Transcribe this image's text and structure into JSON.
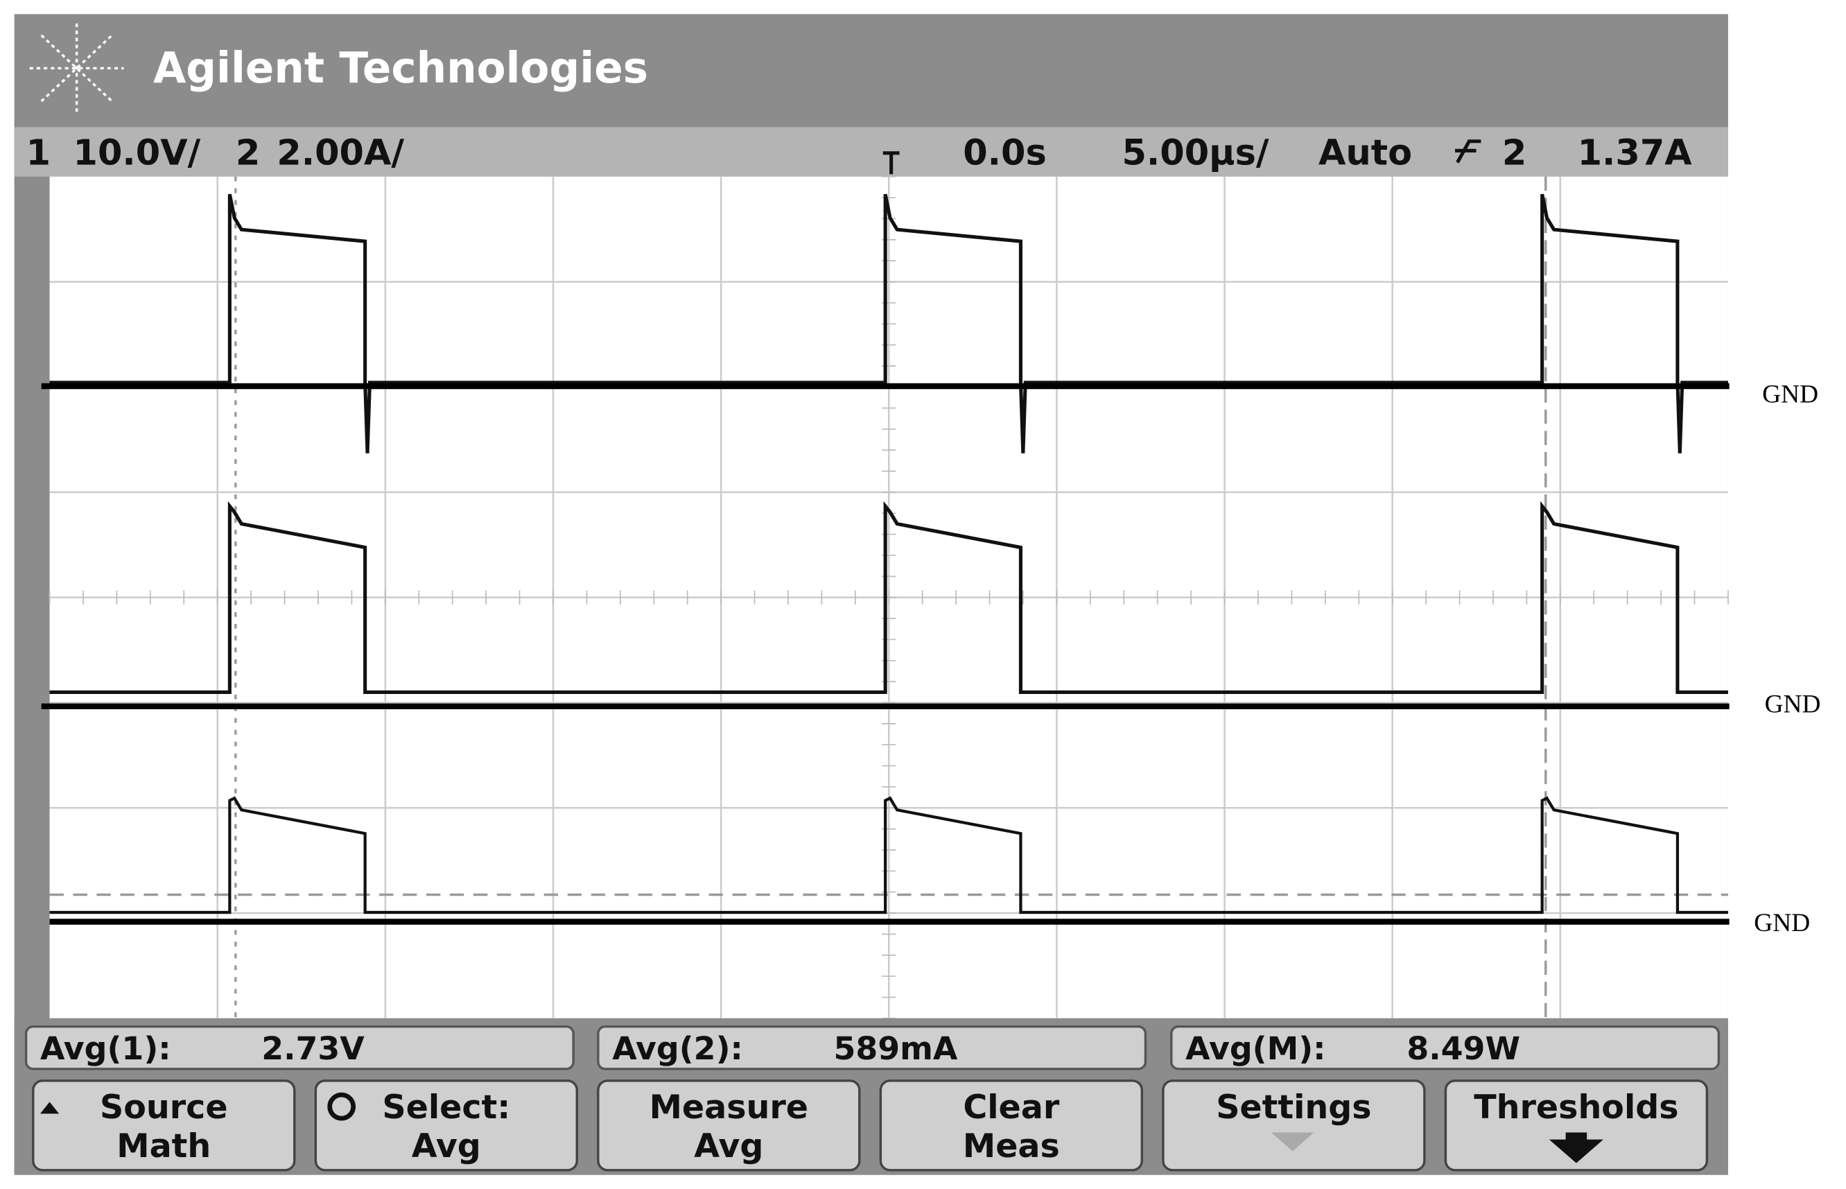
{
  "header": {
    "brand": "Agilent Technologies"
  },
  "status": {
    "ch1_number": "1",
    "ch1_scale": "10.0V/",
    "ch2_number": "2",
    "ch2_scale": "2.00A/",
    "time_offset": "0.0s",
    "time_scale": "5.00µs/",
    "trigger_mode": "Auto",
    "trigger_source": "2",
    "trigger_level": "1.37A"
  },
  "gnd_labels": [
    "GND",
    "GND",
    "GND"
  ],
  "measurements": [
    {
      "label": "Avg(1):",
      "value": "2.73V"
    },
    {
      "label": "Avg(2):",
      "value": "589mA"
    },
    {
      "label": "Avg(M):",
      "value": "8.49W"
    }
  ],
  "softkeys": [
    {
      "lines": [
        "Source",
        "Math"
      ]
    },
    {
      "lines": [
        "Select:",
        "Avg"
      ]
    },
    {
      "lines": [
        "Measure",
        "Avg"
      ]
    },
    {
      "lines": [
        "Clear",
        "Meas"
      ]
    },
    {
      "lines": [
        "Settings"
      ]
    },
    {
      "lines": [
        "Thresholds"
      ]
    }
  ]
}
